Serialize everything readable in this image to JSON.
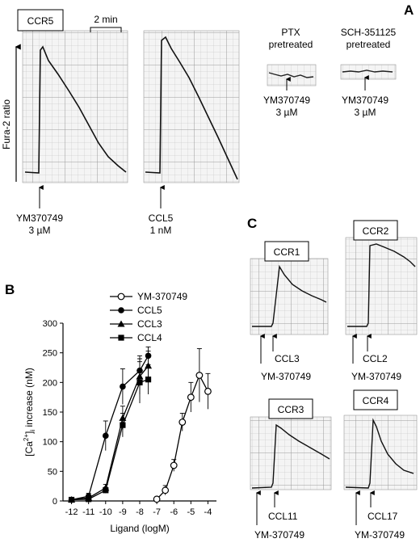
{
  "panel_a": {
    "letter": "A",
    "receptor_box": "CCR5",
    "scale_bar": "2 min",
    "ylabel": "Fura-2 ratio",
    "traces": [
      {
        "ligand": "YM370749",
        "dose": "3 µM"
      },
      {
        "ligand": "CCL5",
        "dose": "1 nM"
      }
    ],
    "insets": [
      {
        "title_line1": "PTX",
        "title_line2": "pretreated",
        "ligand": "YM370749",
        "dose": "3 µM"
      },
      {
        "title_line1": "SCH-351125",
        "title_line2": "pretreated",
        "ligand": "YM370749",
        "dose": "3 µM"
      }
    ]
  },
  "panel_b": {
    "letter": "B",
    "chart_data": {
      "type": "line",
      "title": "",
      "xlabel": "Ligand (logM)",
      "ylabel_main": "[Ca",
      "ylabel_sup": "2+",
      "ylabel_bracket": "]",
      "ylabel_sub": "i",
      "ylabel_rest": " increase (nM)",
      "xlim": [
        -12.5,
        -3.5
      ],
      "ylim": [
        0,
        300
      ],
      "xticks": [
        -12,
        -11,
        -10,
        -9,
        -8,
        -7,
        -6,
        -5,
        -4
      ],
      "xtick_labels": [
        "-12",
        "-11",
        "-10",
        "-9",
        "-8",
        "-7",
        "-6",
        "-5",
        "-4"
      ],
      "yticks": [
        0,
        50,
        100,
        150,
        200,
        250,
        300
      ],
      "ytick_labels": [
        "0",
        "50",
        "100",
        "150",
        "200",
        "250",
        "300"
      ],
      "legend_position": "top-right",
      "series": [
        {
          "name": "YM-370749",
          "marker": "circle-open",
          "x": [
            -7,
            -6.5,
            -6,
            -5.5,
            -5,
            -4.5,
            -4
          ],
          "y": [
            3,
            18,
            60,
            133,
            175,
            212,
            185
          ],
          "err": [
            4,
            8,
            10,
            15,
            25,
            45,
            30
          ]
        },
        {
          "name": "CCL5",
          "marker": "circle-filled",
          "x": [
            -12,
            -11,
            -10,
            -9,
            -8,
            -7.5
          ],
          "y": [
            2,
            8,
            110,
            193,
            220,
            245
          ],
          "err": [
            3,
            5,
            25,
            30,
            25,
            15
          ]
        },
        {
          "name": "CCL3",
          "marker": "triangle-filled",
          "x": [
            -12,
            -11,
            -10,
            -9,
            -8,
            -7.5
          ],
          "y": [
            2,
            5,
            22,
            140,
            210,
            228
          ],
          "err": [
            3,
            4,
            6,
            20,
            30,
            25
          ]
        },
        {
          "name": "CCL4",
          "marker": "square-filled",
          "x": [
            -12,
            -11,
            -10,
            -9,
            -8,
            -7.5
          ],
          "y": [
            2,
            3,
            18,
            128,
            200,
            205
          ],
          "err": [
            3,
            3,
            5,
            20,
            35,
            25
          ]
        }
      ]
    }
  },
  "panel_c": {
    "letter": "C",
    "plots": [
      {
        "receptor": "CCR1",
        "ligand": "CCL3",
        "compound": "YM-370749"
      },
      {
        "receptor": "CCR2",
        "ligand": "CCL2",
        "compound": "YM-370749"
      },
      {
        "receptor": "CCR3",
        "ligand": "CCL11",
        "compound": "YM-370749"
      },
      {
        "receptor": "CCR4",
        "ligand": "CCL17",
        "compound": "YM-370749"
      }
    ]
  }
}
